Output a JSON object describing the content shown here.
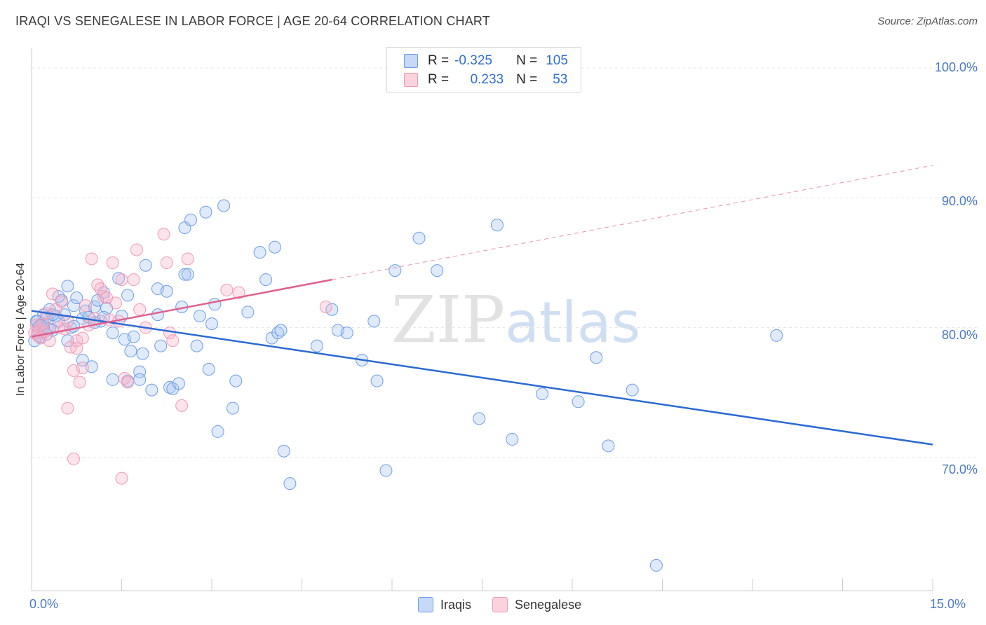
{
  "chart_data": {
    "type": "scatter",
    "title": "IRAQI VS SENEGALESE IN LABOR FORCE | AGE 20-64 CORRELATION CHART",
    "source": "Source: ZipAtlas.com",
    "ylabel": "In Labor Force | Age 20-64",
    "xlabel": "",
    "xlim": [
      0,
      15
    ],
    "ylim": [
      60.5,
      102.5
    ],
    "y_ticks": [
      {
        "value": 100,
        "label": "100.0%"
      },
      {
        "value": 90,
        "label": "90.0%"
      },
      {
        "value": 80,
        "label": "80.0%"
      },
      {
        "value": 70,
        "label": "70.0%"
      }
    ],
    "x_tick_labels": {
      "min": "0.0%",
      "max": "15.0%"
    },
    "grid": true,
    "watermark": "ZIPatlas",
    "legend": [
      {
        "series": "Iraqis",
        "r_label": "R =",
        "r_value": "-0.325",
        "n_label": "N =",
        "n_value": "105",
        "color": "#6d9ee8"
      },
      {
        "series": "Senegalese",
        "r_label": "R =",
        "r_value": "0.233",
        "n_label": "N =",
        "n_value": "53",
        "color": "#f19ab4"
      }
    ],
    "series": [
      {
        "name": "Iraqis",
        "color": "#6d9ee8",
        "trend": {
          "x": [
            0,
            15
          ],
          "y": [
            81.3,
            71.0
          ],
          "color": "#2a6ad3"
        },
        "points": [
          [
            0.05,
            79.0
          ],
          [
            0.08,
            80.5
          ],
          [
            0.1,
            79.6
          ],
          [
            0.12,
            80.1
          ],
          [
            0.15,
            79.3
          ],
          [
            0.18,
            80.3
          ],
          [
            0.2,
            81.0
          ],
          [
            0.25,
            80.8
          ],
          [
            0.3,
            81.4
          ],
          [
            0.35,
            79.8
          ],
          [
            0.4,
            80.9
          ],
          [
            0.45,
            80.5
          ],
          [
            0.5,
            82.1
          ],
          [
            0.55,
            81.0
          ],
          [
            0.6,
            79.0
          ],
          [
            0.65,
            80.0
          ],
          [
            0.7,
            81.7
          ],
          [
            0.75,
            82.3
          ],
          [
            0.85,
            80.7
          ],
          [
            0.9,
            81.3
          ],
          [
            0.95,
            80.8
          ],
          [
            1.05,
            81.6
          ],
          [
            1.1,
            82.1
          ],
          [
            1.15,
            80.5
          ],
          [
            1.2,
            82.7
          ],
          [
            1.25,
            81.5
          ],
          [
            1.35,
            79.6
          ],
          [
            1.45,
            83.8
          ],
          [
            1.5,
            80.9
          ],
          [
            1.55,
            79.1
          ],
          [
            1.6,
            82.5
          ],
          [
            1.65,
            78.2
          ],
          [
            1.7,
            79.3
          ],
          [
            1.8,
            76.6
          ],
          [
            1.85,
            78.0
          ],
          [
            1.8,
            76.0
          ],
          [
            1.9,
            84.8
          ],
          [
            2.0,
            75.2
          ],
          [
            2.1,
            83.0
          ],
          [
            2.15,
            78.6
          ],
          [
            2.25,
            82.8
          ],
          [
            2.3,
            75.4
          ],
          [
            2.35,
            75.3
          ],
          [
            2.45,
            75.7
          ],
          [
            2.5,
            81.6
          ],
          [
            2.55,
            84.1
          ],
          [
            2.6,
            84.1
          ],
          [
            2.55,
            87.7
          ],
          [
            2.65,
            88.3
          ],
          [
            2.75,
            78.6
          ],
          [
            2.8,
            80.9
          ],
          [
            2.9,
            88.9
          ],
          [
            2.95,
            76.8
          ],
          [
            3.0,
            80.3
          ],
          [
            3.05,
            81.8
          ],
          [
            3.1,
            72.0
          ],
          [
            3.2,
            89.4
          ],
          [
            3.35,
            73.8
          ],
          [
            3.4,
            75.9
          ],
          [
            3.6,
            81.2
          ],
          [
            3.8,
            85.8
          ],
          [
            3.9,
            83.7
          ],
          [
            4.0,
            79.2
          ],
          [
            4.05,
            86.2
          ],
          [
            4.1,
            79.6
          ],
          [
            4.15,
            79.8
          ],
          [
            4.2,
            70.5
          ],
          [
            4.3,
            68.0
          ],
          [
            4.75,
            78.6
          ],
          [
            5.0,
            81.4
          ],
          [
            5.1,
            79.8
          ],
          [
            5.25,
            79.6
          ],
          [
            5.5,
            77.5
          ],
          [
            5.7,
            80.5
          ],
          [
            5.75,
            75.9
          ],
          [
            5.9,
            69.0
          ],
          [
            6.05,
            84.4
          ],
          [
            6.45,
            86.9
          ],
          [
            6.75,
            84.4
          ],
          [
            7.45,
            73.0
          ],
          [
            7.75,
            87.9
          ],
          [
            8.0,
            71.4
          ],
          [
            8.5,
            74.9
          ],
          [
            9.1,
            74.3
          ],
          [
            9.4,
            77.7
          ],
          [
            9.6,
            70.9
          ],
          [
            10.0,
            75.2
          ],
          [
            10.4,
            61.7
          ],
          [
            12.4,
            79.4
          ],
          [
            0.3,
            79.9
          ],
          [
            0.45,
            82.4
          ],
          [
            0.6,
            83.2
          ],
          [
            0.85,
            77.5
          ],
          [
            1.0,
            77.0
          ],
          [
            1.35,
            76.0
          ],
          [
            1.6,
            75.9
          ],
          [
            0.2,
            80.0
          ],
          [
            0.1,
            80.5
          ],
          [
            0.15,
            80.2
          ],
          [
            0.25,
            79.5
          ],
          [
            1.2,
            80.8
          ],
          [
            2.1,
            81.0
          ],
          [
            0.35,
            81.0
          ],
          [
            0.7,
            80.1
          ],
          [
            1.05,
            80.4
          ]
        ]
      },
      {
        "name": "Senegalese",
        "color": "#f19ab4",
        "trend": {
          "x": [
            0,
            5
          ],
          "y": [
            79.3,
            83.7
          ],
          "color": "#e0608f",
          "extended_to": [
            15,
            92.5
          ]
        },
        "points": [
          [
            0.05,
            79.6
          ],
          [
            0.08,
            80.2
          ],
          [
            0.1,
            79.4
          ],
          [
            0.12,
            79.8
          ],
          [
            0.15,
            79.2
          ],
          [
            0.2,
            80.3
          ],
          [
            0.22,
            79.7
          ],
          [
            0.25,
            81.1
          ],
          [
            0.3,
            79.0
          ],
          [
            0.35,
            82.6
          ],
          [
            0.4,
            81.4
          ],
          [
            0.45,
            80.0
          ],
          [
            0.5,
            82.0
          ],
          [
            0.55,
            79.9
          ],
          [
            0.6,
            80.5
          ],
          [
            0.65,
            78.5
          ],
          [
            0.7,
            76.7
          ],
          [
            0.75,
            79.0
          ],
          [
            0.8,
            75.8
          ],
          [
            0.85,
            76.9
          ],
          [
            0.9,
            81.7
          ],
          [
            0.95,
            80.2
          ],
          [
            1.0,
            85.3
          ],
          [
            1.05,
            80.7
          ],
          [
            1.1,
            83.3
          ],
          [
            1.15,
            83.0
          ],
          [
            1.2,
            82.4
          ],
          [
            1.25,
            82.3
          ],
          [
            1.3,
            80.6
          ],
          [
            1.35,
            85.0
          ],
          [
            1.4,
            81.9
          ],
          [
            1.45,
            80.5
          ],
          [
            1.5,
            83.7
          ],
          [
            1.55,
            76.1
          ],
          [
            1.6,
            75.8
          ],
          [
            1.7,
            83.7
          ],
          [
            1.75,
            86.0
          ],
          [
            1.8,
            81.4
          ],
          [
            1.9,
            80.0
          ],
          [
            2.2,
            87.2
          ],
          [
            2.25,
            85.0
          ],
          [
            2.3,
            79.6
          ],
          [
            2.35,
            79.0
          ],
          [
            2.5,
            74.0
          ],
          [
            2.6,
            85.3
          ],
          [
            3.25,
            82.9
          ],
          [
            3.45,
            82.7
          ],
          [
            4.9,
            81.6
          ],
          [
            0.6,
            73.8
          ],
          [
            0.75,
            78.4
          ],
          [
            0.85,
            79.2
          ],
          [
            0.7,
            69.9
          ],
          [
            1.5,
            68.4
          ]
        ]
      }
    ]
  }
}
